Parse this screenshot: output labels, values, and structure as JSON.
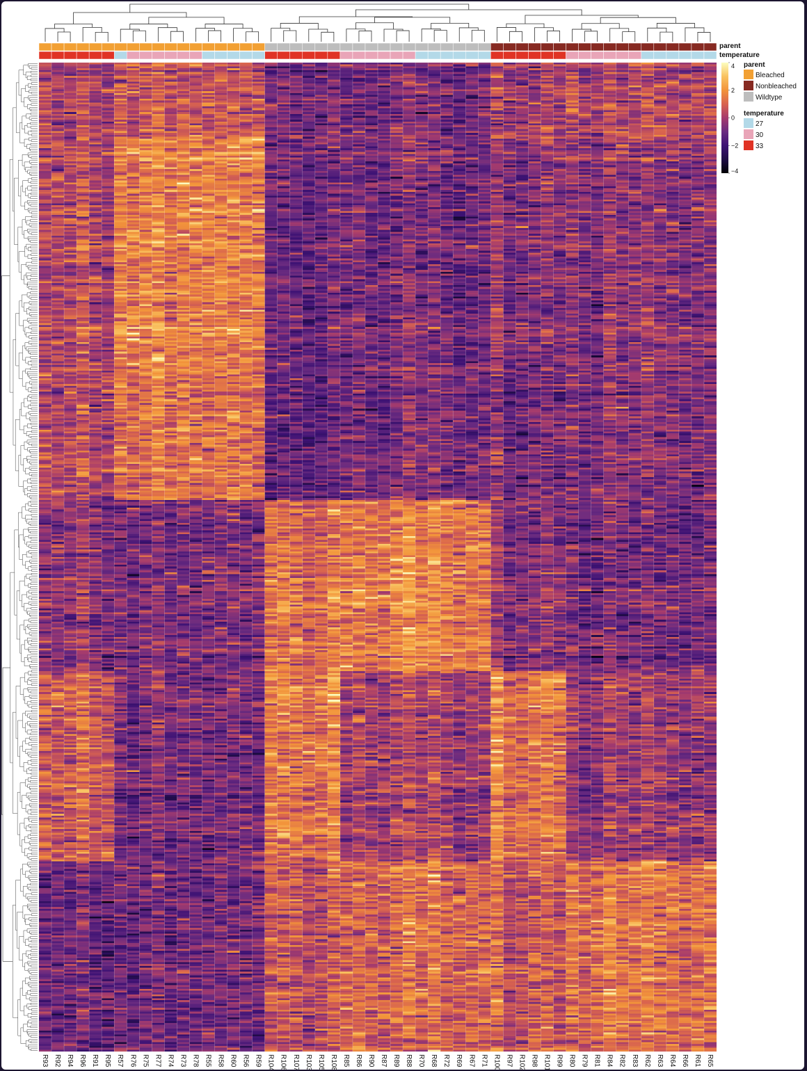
{
  "chart_data": {
    "type": "heatmap",
    "title": "",
    "xlabel": "",
    "ylabel": "",
    "columns": [
      "R93",
      "R92",
      "R94",
      "R96",
      "R91",
      "R95",
      "R57",
      "R76",
      "R75",
      "R77",
      "R74",
      "R73",
      "R78",
      "R55",
      "R58",
      "R60",
      "R56",
      "R59",
      "R104",
      "R106",
      "R107",
      "R103",
      "R105",
      "R108",
      "R85",
      "R86",
      "R90",
      "R87",
      "R89",
      "R88",
      "R70",
      "R68",
      "R72",
      "R69",
      "R67",
      "R71",
      "R100",
      "R97",
      "R102",
      "R98",
      "R101",
      "R99",
      "R80",
      "R79",
      "R81",
      "R84",
      "R82",
      "R83",
      "R62",
      "R63",
      "R64",
      "R66",
      "R61",
      "R65"
    ],
    "row_count": 520,
    "annotations": {
      "parent": {
        "title": "parent",
        "levels": [
          "Bleached",
          "Nonbleached",
          "Wildtype"
        ],
        "colors": {
          "Bleached": "#f2a033",
          "Nonbleached": "#872a22",
          "Wildtype": "#bdbdbd"
        },
        "values": [
          "Bleached",
          "Bleached",
          "Bleached",
          "Bleached",
          "Bleached",
          "Bleached",
          "Bleached",
          "Bleached",
          "Bleached",
          "Bleached",
          "Bleached",
          "Bleached",
          "Bleached",
          "Bleached",
          "Bleached",
          "Bleached",
          "Bleached",
          "Bleached",
          "Wildtype",
          "Wildtype",
          "Wildtype",
          "Wildtype",
          "Wildtype",
          "Wildtype",
          "Wildtype",
          "Wildtype",
          "Wildtype",
          "Wildtype",
          "Wildtype",
          "Wildtype",
          "Wildtype",
          "Wildtype",
          "Wildtype",
          "Wildtype",
          "Wildtype",
          "Wildtype",
          "Nonbleached",
          "Nonbleached",
          "Nonbleached",
          "Nonbleached",
          "Nonbleached",
          "Nonbleached",
          "Nonbleached",
          "Nonbleached",
          "Nonbleached",
          "Nonbleached",
          "Nonbleached",
          "Nonbleached",
          "Nonbleached",
          "Nonbleached",
          "Nonbleached",
          "Nonbleached",
          "Nonbleached",
          "Nonbleached"
        ]
      },
      "temperature": {
        "title": "temperature",
        "levels": [
          "27",
          "30",
          "33"
        ],
        "colors": {
          "27": "#b3d9e8",
          "30": "#e9a5b8",
          "33": "#e03325"
        },
        "values": [
          "33",
          "33",
          "33",
          "33",
          "33",
          "33",
          "27",
          "30",
          "30",
          "30",
          "30",
          "30",
          "30",
          "27",
          "27",
          "27",
          "27",
          "27",
          "33",
          "33",
          "33",
          "33",
          "33",
          "33",
          "30",
          "30",
          "30",
          "30",
          "30",
          "30",
          "27",
          "27",
          "27",
          "27",
          "27",
          "27",
          "33",
          "33",
          "33",
          "33",
          "33",
          "33",
          "30",
          "30",
          "30",
          "30",
          "30",
          "30",
          "27",
          "27",
          "27",
          "27",
          "27",
          "27"
        ]
      }
    },
    "color_scale": {
      "min": -4,
      "max": 4,
      "ticks": [
        4,
        2,
        0,
        -2,
        -4
      ],
      "stops": [
        {
          "v": -4,
          "c": "#000004"
        },
        {
          "v": -3,
          "c": "#1e0c45"
        },
        {
          "v": -2,
          "c": "#3d1274"
        },
        {
          "v": -1,
          "c": "#6a2b80"
        },
        {
          "v": 0,
          "c": "#a53b6d"
        },
        {
          "v": 1,
          "c": "#d8634f"
        },
        {
          "v": 2,
          "c": "#f2933a"
        },
        {
          "v": 3,
          "c": "#f9c260"
        },
        {
          "v": 4,
          "c": "#fcfdbf"
        }
      ]
    },
    "row_blocks": [
      {
        "from": 0,
        "to": 40,
        "means": [
          0.2,
          0.6,
          -0.8,
          -1.0,
          -0.1,
          0.3
        ]
      },
      {
        "from": 40,
        "to": 160,
        "means": [
          0.3,
          1.5,
          -1.0,
          -1.1,
          -0.7,
          -0.5
        ]
      },
      {
        "from": 160,
        "to": 230,
        "means": [
          0.4,
          1.2,
          -1.2,
          -1.0,
          -0.8,
          -0.6
        ]
      },
      {
        "from": 230,
        "to": 320,
        "means": [
          -0.4,
          -0.8,
          1.3,
          1.4,
          -0.6,
          -0.8
        ]
      },
      {
        "from": 320,
        "to": 420,
        "means": [
          1.0,
          -0.9,
          1.5,
          -0.2,
          1.3,
          -0.2
        ]
      },
      {
        "from": 420,
        "to": 520,
        "means": [
          -1.0,
          -1.0,
          0.6,
          0.8,
          0.6,
          1.3
        ]
      }
    ],
    "legend_placement": "right"
  }
}
